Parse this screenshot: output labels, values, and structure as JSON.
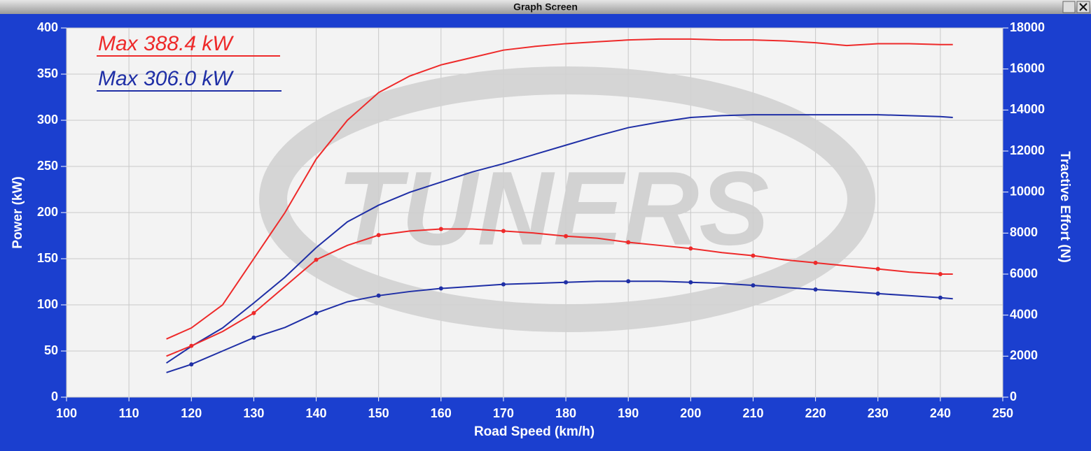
{
  "window_title": "Graph Screen",
  "watermark": "TUNERS",
  "chart_data": {
    "type": "line",
    "x_label": "Road Speed (km/h)",
    "y_label": "Power (kW)",
    "y2_label": "Tractive Effort (N)",
    "annotations": [
      {
        "text": "Max 388.4 kW",
        "color": "#ee2a2a"
      },
      {
        "text": "Max 306.0 kW",
        "color": "#1f2fa6"
      }
    ],
    "xlim": [
      100,
      250
    ],
    "xticks": [
      100,
      110,
      120,
      130,
      140,
      150,
      160,
      170,
      180,
      190,
      200,
      210,
      220,
      230,
      240,
      250
    ],
    "ylim": [
      0,
      400
    ],
    "yticks": [
      0,
      50,
      100,
      150,
      200,
      250,
      300,
      350,
      400
    ],
    "y2lim": [
      0,
      18000
    ],
    "y2ticks": [
      0,
      2000,
      4000,
      6000,
      8000,
      10000,
      12000,
      14000,
      16000,
      18000
    ],
    "grid": true,
    "x": [
      116,
      120,
      125,
      130,
      135,
      140,
      145,
      150,
      155,
      160,
      165,
      170,
      175,
      180,
      185,
      190,
      195,
      200,
      205,
      210,
      215,
      220,
      225,
      230,
      235,
      240,
      242
    ],
    "series": [
      {
        "color": "#ee2a2a",
        "values": [
          63,
          75,
          100,
          150,
          200,
          258,
          300,
          330,
          348,
          360,
          368,
          376,
          380,
          383,
          385,
          387,
          388,
          388,
          387,
          387,
          386,
          384,
          381,
          383,
          383,
          382,
          382
        ]
      },
      {
        "color": "#1f2fa6",
        "values": [
          37,
          55,
          75,
          102,
          130,
          162,
          190,
          208,
          222,
          233,
          244,
          253,
          263,
          273,
          283,
          292,
          298,
          303,
          305,
          306,
          306,
          306,
          306,
          306,
          305,
          304,
          303
        ]
      },
      {
        "color": "#ee2a2a",
        "axis": "y2",
        "values": [
          2000,
          2500,
          3200,
          4100,
          5400,
          6700,
          7400,
          7900,
          8100,
          8200,
          8200,
          8100,
          8000,
          7850,
          7750,
          7550,
          7400,
          7250,
          7050,
          6900,
          6700,
          6550,
          6400,
          6250,
          6100,
          6000,
          6000
        ]
      },
      {
        "color": "#1f2fa6",
        "axis": "y2",
        "values": [
          1200,
          1600,
          2250,
          2900,
          3400,
          4100,
          4650,
          4950,
          5150,
          5300,
          5400,
          5500,
          5550,
          5600,
          5650,
          5650,
          5650,
          5600,
          5550,
          5450,
          5350,
          5250,
          5150,
          5050,
          4950,
          4850,
          4800
        ]
      }
    ]
  }
}
